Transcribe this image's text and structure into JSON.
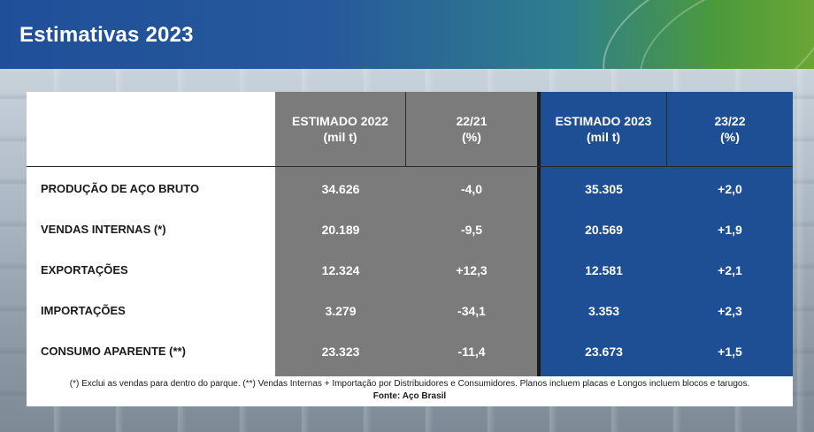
{
  "title": "Estimativas 2023",
  "headers": {
    "col1_line1": "ESTIMADO 2022",
    "col1_line2": "(mil t)",
    "col2_line1": "22/21",
    "col2_line2": "(%)",
    "col3_line1": "ESTIMADO 2023",
    "col3_line2": "(mil t)",
    "col4_line1": "23/22",
    "col4_line2": "(%)"
  },
  "rows": [
    {
      "label": "PRODUÇÃO DE AÇO BRUTO",
      "est2022": "34.626",
      "var2221": "-4,0",
      "est2023": "35.305",
      "var2322": "+2,0"
    },
    {
      "label": "VENDAS INTERNAS (*)",
      "est2022": "20.189",
      "var2221": "-9,5",
      "est2023": "20.569",
      "var2322": "+1,9"
    },
    {
      "label": "EXPORTAÇÕES",
      "est2022": "12.324",
      "var2221": "+12,3",
      "est2023": "12.581",
      "var2322": "+2,1"
    },
    {
      "label": "IMPORTAÇÕES",
      "est2022": "3.279",
      "var2221": "-34,1",
      "est2023": "3.353",
      "var2322": "+2,3"
    },
    {
      "label": "CONSUMO APARENTE (**)",
      "est2022": "23.323",
      "var2221": "-11,4",
      "est2023": "23.673",
      "var2322": "+1,5"
    }
  ],
  "footnote": {
    "text": "(*) Exclui as vendas para dentro do parque.  (**) Vendas Internas + Importação por Distribuidores e Consumidores. Planos incluem placas e Longos incluem blocos e tarugos.",
    "source": "Fonte: Aço Brasil"
  },
  "colors": {
    "header_blue": "#1f4f99",
    "gray_col": "#7b7b7b",
    "blue_col": "#1e4f94"
  }
}
